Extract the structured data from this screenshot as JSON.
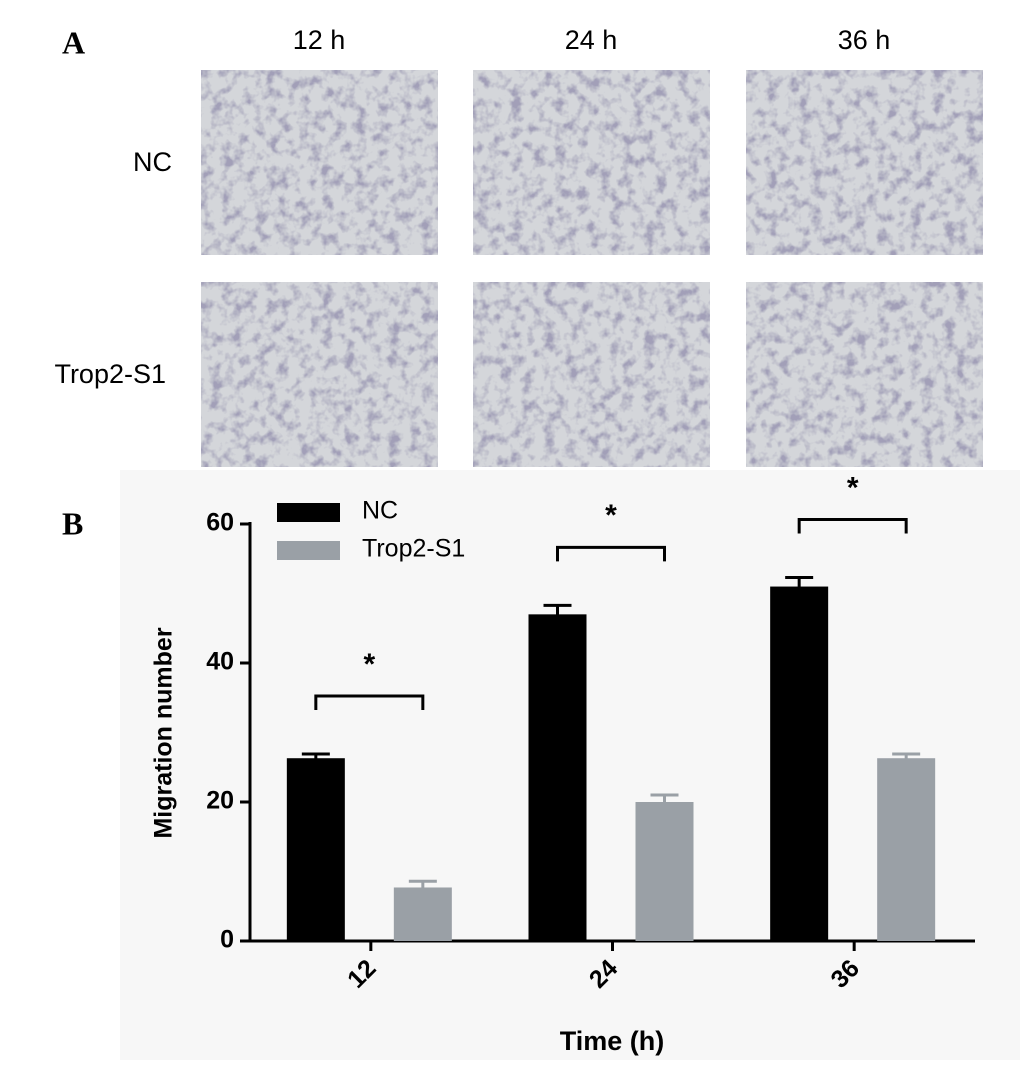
{
  "panel_a": {
    "label": "A",
    "columns": [
      "12 h",
      "24 h",
      "36 h"
    ],
    "rows": [
      "NC",
      "Trop2-S1"
    ]
  },
  "chart_data": {
    "type": "bar",
    "panel_label": "B",
    "xlabel": "Time (h)",
    "ylabel": "Migration number",
    "categories": [
      "12",
      "24",
      "36"
    ],
    "series": [
      {
        "name": "NC",
        "color": "#000000",
        "values": [
          26.3,
          47,
          51
        ],
        "errors": [
          0.6,
          1.3,
          1.3
        ]
      },
      {
        "name": "Trop2-S1",
        "color": "#9aa0a6",
        "values": [
          7.7,
          20,
          26.3
        ],
        "errors": [
          0.9,
          1,
          0.6
        ]
      }
    ],
    "annotations": [
      "*",
      "*",
      "*"
    ],
    "ylim": [
      0,
      60
    ],
    "yticks": [
      0,
      20,
      40,
      60
    ],
    "legend": "top-left"
  }
}
